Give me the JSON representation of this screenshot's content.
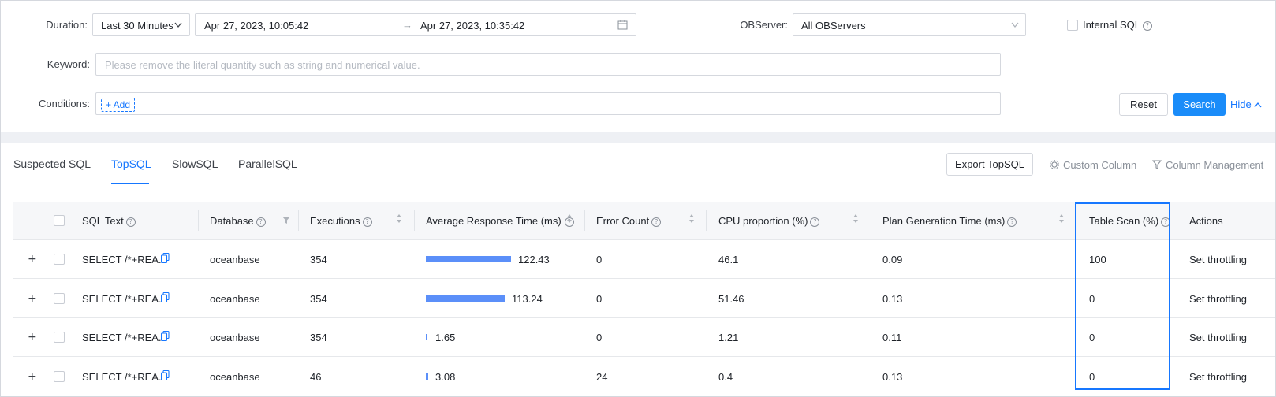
{
  "filters": {
    "duration_label": "Duration:",
    "duration_value": "Last 30 Minutes",
    "time_start": "Apr 27, 2023, 10:05:42",
    "time_arrow": "→",
    "time_end": "Apr 27, 2023, 10:35:42",
    "observer_label": "OBServer:",
    "observer_value": "All OBServers",
    "internal_sql_label": "Internal SQL",
    "internal_sql_checked": false,
    "keyword_label": "Keyword:",
    "keyword_placeholder": "Please remove the literal quantity such as string and numerical value.",
    "conditions_label": "Conditions:",
    "add_condition": "+ Add",
    "reset": "Reset",
    "search": "Search",
    "hide": "Hide"
  },
  "tabs": [
    {
      "label": "Suspected SQL",
      "active": false
    },
    {
      "label": "TopSQL",
      "active": true
    },
    {
      "label": "SlowSQL",
      "active": false
    },
    {
      "label": "ParallelSQL",
      "active": false
    }
  ],
  "toolbar": {
    "export": "Export TopSQL",
    "custom_column": "Custom Column",
    "column_management": "Column Management"
  },
  "table": {
    "headers": {
      "sql_text": "SQL Text",
      "database": "Database",
      "executions": "Executions",
      "avg_response": "Average Response Time (ms)",
      "error_count": "Error Count",
      "cpu_proportion": "CPU proportion (%)",
      "plan_generation": "Plan Generation Time (ms)",
      "table_scan": "Table Scan (%)",
      "actions": "Actions"
    },
    "rows": [
      {
        "sql_text": "SELECT /*+REA...",
        "database": "oceanbase",
        "executions": "354",
        "avg_response": 122.43,
        "avg_response_text": "122.43",
        "error_count": "0",
        "cpu_proportion": "46.1",
        "plan_generation": "0.09",
        "table_scan": "100",
        "action": "Set throttling"
      },
      {
        "sql_text": "SELECT /*+REA...",
        "database": "oceanbase",
        "executions": "354",
        "avg_response": 113.24,
        "avg_response_text": "113.24",
        "error_count": "0",
        "cpu_proportion": "51.46",
        "plan_generation": "0.13",
        "table_scan": "0",
        "action": "Set throttling"
      },
      {
        "sql_text": "SELECT /*+REA...",
        "database": "oceanbase",
        "executions": "354",
        "avg_response": 1.65,
        "avg_response_text": "1.65",
        "error_count": "0",
        "cpu_proportion": "1.21",
        "plan_generation": "0.11",
        "table_scan": "0",
        "action": "Set throttling"
      },
      {
        "sql_text": "SELECT /*+REA...",
        "database": "oceanbase",
        "executions": "46",
        "avg_response": 3.08,
        "avg_response_text": "3.08",
        "error_count": "24",
        "cpu_proportion": "0.4",
        "plan_generation": "0.13",
        "table_scan": "0",
        "action": "Set throttling"
      }
    ]
  },
  "colors": {
    "accent": "#1677ff",
    "bar": "#5b8ff9",
    "highlight_border": "#1677ff"
  }
}
